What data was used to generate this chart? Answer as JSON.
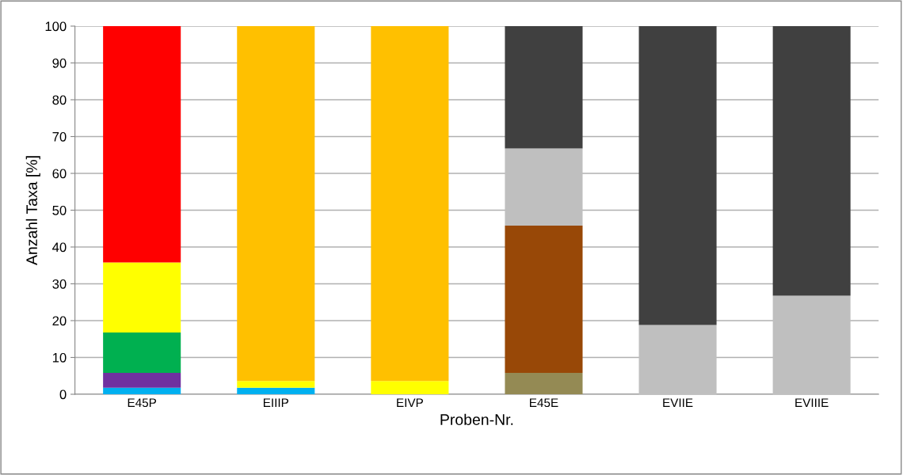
{
  "chart_data": {
    "type": "bar",
    "stacked": true,
    "xlabel": "Proben-Nr.",
    "ylabel": "Anzahl Taxa [%]",
    "categories": [
      "E45P",
      "EIIIP",
      "EIVP",
      "E45E",
      "EVIIE",
      "EVIIIE"
    ],
    "ylim": [
      0,
      100
    ],
    "yticks": [
      0,
      10,
      20,
      30,
      40,
      50,
      60,
      70,
      80,
      90,
      100
    ],
    "grid": "y",
    "legend": false,
    "series": [
      {
        "color": "#00b0f0",
        "values": [
          1.8,
          1.8,
          null,
          null,
          null,
          null
        ]
      },
      {
        "color": "#7030a0",
        "values": [
          4,
          null,
          null,
          null,
          null,
          null
        ]
      },
      {
        "color": "#00b050",
        "values": [
          11,
          null,
          null,
          null,
          null,
          null
        ]
      },
      {
        "color": "#ffff00",
        "values": [
          19,
          1.8,
          3.6,
          null,
          null,
          null
        ]
      },
      {
        "color": "#ffc000",
        "values": [
          null,
          96.4,
          96.4,
          null,
          null,
          null
        ]
      },
      {
        "color": "#ff0000",
        "values": [
          64.2,
          null,
          null,
          null,
          null,
          null
        ]
      },
      {
        "color": "#948a54",
        "values": [
          null,
          null,
          null,
          5.8,
          null,
          null
        ]
      },
      {
        "color": "#984807",
        "values": [
          null,
          null,
          null,
          40,
          null,
          null
        ]
      },
      {
        "color": "#bfbfbf",
        "values": [
          null,
          null,
          null,
          21,
          18.8,
          26.8
        ]
      },
      {
        "color": "#404040",
        "values": [
          null,
          null,
          null,
          33.2,
          81.2,
          73.2
        ]
      }
    ]
  }
}
